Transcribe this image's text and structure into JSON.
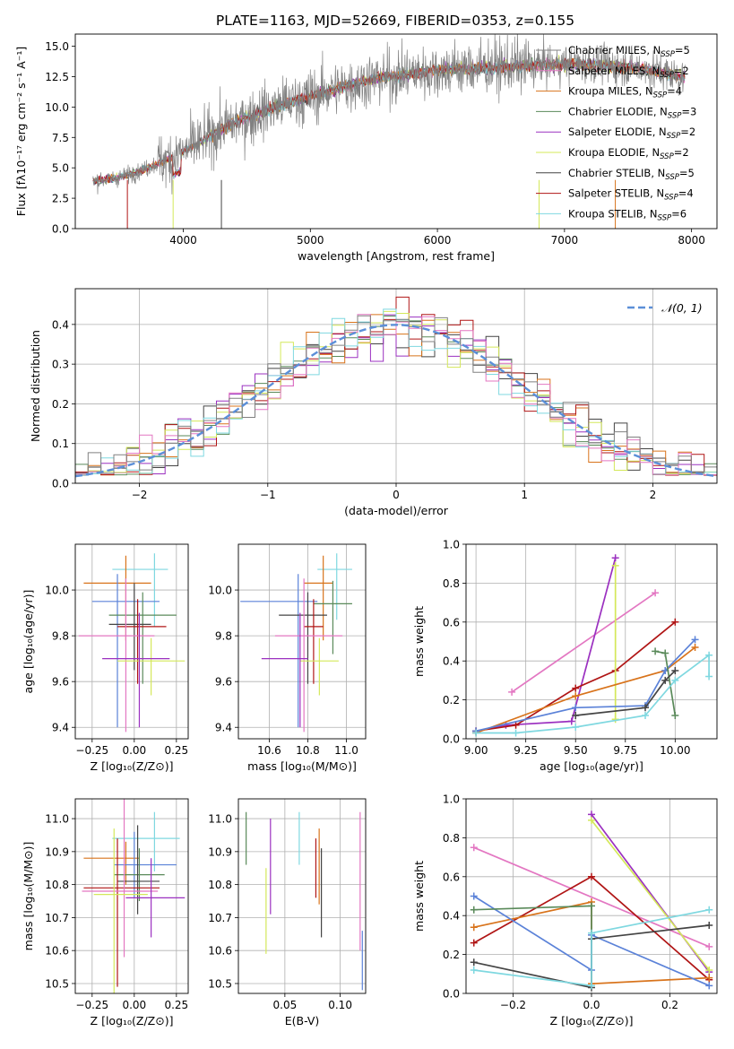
{
  "figure": {
    "title": "PLATE=1163, MJD=52669, FIBERID=0353, z=0.155"
  },
  "models": [
    {
      "label": "Chabrier MILES, N",
      "sub": "SSP",
      "tail": "=5",
      "color": "#808080"
    },
    {
      "label": "Salpeter MILES, N",
      "sub": "SSP",
      "tail": "=2",
      "color": "#e377c2"
    },
    {
      "label": "Kroupa MILES, N",
      "sub": "SSP",
      "tail": "=4",
      "color": "#d8731b"
    },
    {
      "label": "Chabrier ELODIE, N",
      "sub": "SSP",
      "tail": "=3",
      "color": "#5a8a5a"
    },
    {
      "label": "Salpeter ELODIE, N",
      "sub": "SSP",
      "tail": "=2",
      "color": "#9b30c0"
    },
    {
      "label": "Kroupa ELODIE, N",
      "sub": "SSP",
      "tail": "=2",
      "color": "#d4e85a"
    },
    {
      "label": "Chabrier STELIB, N",
      "sub": "SSP",
      "tail": "=5",
      "color": "#444444"
    },
    {
      "label": "Salpeter STELIB, N",
      "sub": "SSP",
      "tail": "=4",
      "color": "#b01515"
    },
    {
      "label": "Kroupa STELIB, N",
      "sub": "SSP",
      "tail": "=6",
      "color": "#7fd8e0"
    }
  ],
  "extra_colors": {
    "blue": "#5b82d8",
    "gauss": "#5b8fd8"
  },
  "chart_data": [
    {
      "id": "spectrum",
      "type": "line",
      "xlabel": "wavelength [Angstrom, rest frame]",
      "ylabel": "Flux [fλ10⁻¹⁷ erg cm⁻² s⁻¹ A⁻¹]",
      "xlim": [
        3150,
        8200
      ],
      "ylim": [
        0,
        16
      ],
      "xticks": [
        "4000",
        "5000",
        "6000",
        "7000",
        "8000"
      ],
      "yticks": [
        "0.0",
        "2.5",
        "5.0",
        "7.5",
        "10.0",
        "12.5",
        "15.0"
      ],
      "continuum": {
        "x": [
          3300,
          3500,
          3700,
          3900,
          4100,
          4300,
          4500,
          4700,
          4900,
          5100,
          5300,
          5500,
          5700,
          5900,
          6100,
          6300,
          6500,
          6700,
          6900,
          7100,
          7300,
          7500,
          7700,
          7900
        ],
        "y": [
          3.9,
          4.2,
          4.9,
          5.8,
          6.9,
          8.2,
          9.1,
          9.9,
          10.6,
          11.2,
          11.8,
          12.3,
          12.6,
          12.9,
          13.1,
          13.2,
          13.3,
          13.4,
          13.5,
          13.5,
          13.4,
          13.3,
          13.0,
          12.5
        ]
      }
    },
    {
      "id": "residuals",
      "type": "histogram",
      "xlabel": "(data-model)/error",
      "ylabel": "Normed distribution",
      "xlim": [
        -2.5,
        2.5
      ],
      "ylim": [
        0,
        0.49
      ],
      "xticks": [
        "−2",
        "−1",
        "0",
        "1",
        "2"
      ],
      "yticks": [
        "0.0",
        "0.1",
        "0.2",
        "0.3",
        "0.4"
      ],
      "legend": "𝒩(0, 1)",
      "bin_width": 0.1
    },
    {
      "id": "age_vs_z",
      "type": "scatter",
      "xlabel": "Z [log₁₀(Z/Z⊙)]",
      "ylabel": "age  [log₁₀(age/yr)]",
      "xlim": [
        -0.35,
        0.32
      ],
      "ylim": [
        9.35,
        10.2
      ],
      "xticks": [
        "−0.25",
        "0.00",
        "0.25"
      ],
      "yticks": [
        "9.4",
        "9.6",
        "9.8",
        "10.0"
      ],
      "points": [
        {
          "x": 0.12,
          "y": 10.09,
          "xerr": [
            0.25,
            0.08
          ],
          "yerr": [
            0.25,
            0.07
          ]
        },
        {
          "x": -0.05,
          "y": 10.03,
          "xerr": [
            0.25,
            0.15
          ],
          "yerr": [
            0.25,
            0.12
          ]
        },
        {
          "x": -0.1,
          "y": 9.95,
          "xerr": [
            0.15,
            0.25
          ],
          "yerr": [
            0.55,
            0.12
          ]
        },
        {
          "x": 0.05,
          "y": 9.89,
          "xerr": [
            0.2,
            0.2
          ],
          "yerr": [
            0.3,
            0.1
          ]
        },
        {
          "x": 0.0,
          "y": 9.85,
          "xerr": [
            0.15,
            0.1
          ],
          "yerr": [
            0.2,
            0.18
          ]
        },
        {
          "x": 0.02,
          "y": 9.84,
          "xerr": [
            0.12,
            0.17
          ],
          "yerr": [
            0.25,
            0.12
          ]
        },
        {
          "x": -0.05,
          "y": 9.8,
          "xerr": [
            0.28,
            0.17
          ],
          "yerr": [
            0.42,
            0.25
          ]
        },
        {
          "x": 0.1,
          "y": 9.69,
          "xerr": [
            0.2,
            0.2
          ],
          "yerr": [
            0.15,
            0.1
          ]
        },
        {
          "x": 0.03,
          "y": 9.7,
          "xerr": [
            0.22,
            0.18
          ],
          "yerr": [
            0.3,
            0.2
          ]
        }
      ]
    },
    {
      "id": "age_vs_mass",
      "type": "scatter",
      "xlabel": "mass [log₁₀(M/M⊙)]",
      "ylabel": "",
      "xlim": [
        10.44,
        11.1
      ],
      "ylim": [
        9.35,
        10.2
      ],
      "xticks": [
        "10.6",
        "10.8",
        "11.0"
      ],
      "yticks": [
        "9.4",
        "9.6",
        "9.8",
        "10.0"
      ],
      "points": [
        {
          "x": 10.95,
          "y": 10.09,
          "xerr": [
            0.1,
            0.08
          ],
          "yerr": [
            0.22,
            0.07
          ]
        },
        {
          "x": 10.88,
          "y": 10.03,
          "xerr": [
            0.1,
            0.05
          ],
          "yerr": [
            0.25,
            0.12
          ]
        },
        {
          "x": 10.75,
          "y": 9.95,
          "xerr": [
            0.3,
            0.1
          ],
          "yerr": [
            0.55,
            0.12
          ]
        },
        {
          "x": 10.93,
          "y": 9.94,
          "xerr": [
            0.1,
            0.1
          ],
          "yerr": [
            0.22,
            0.1
          ]
        },
        {
          "x": 10.8,
          "y": 9.89,
          "xerr": [
            0.15,
            0.1
          ],
          "yerr": [
            0.3,
            0.1
          ]
        },
        {
          "x": 10.83,
          "y": 9.84,
          "xerr": [
            0.05,
            0.05
          ],
          "yerr": [
            0.25,
            0.12
          ]
        },
        {
          "x": 10.78,
          "y": 9.8,
          "xerr": [
            0.15,
            0.2
          ],
          "yerr": [
            0.42,
            0.25
          ]
        },
        {
          "x": 10.86,
          "y": 9.69,
          "xerr": [
            0.1,
            0.1
          ],
          "yerr": [
            0.15,
            0.1
          ]
        },
        {
          "x": 10.76,
          "y": 9.7,
          "xerr": [
            0.2,
            0.04
          ],
          "yerr": [
            0.3,
            0.2
          ]
        }
      ]
    },
    {
      "id": "weight_vs_age",
      "type": "line",
      "xlabel": "age  [log₁₀(age/yr)]",
      "ylabel": "mass weight",
      "xlim": [
        8.95,
        10.21
      ],
      "ylim": [
        0,
        1
      ],
      "xticks": [
        "9.00",
        "9.25",
        "9.50",
        "9.75",
        "10.00"
      ],
      "yticks": [
        "0.0",
        "0.2",
        "0.4",
        "0.6",
        "0.8",
        "1.0"
      ],
      "series": [
        {
          "x": [
            9.18,
            9.9
          ],
          "y": [
            0.24,
            0.75
          ]
        },
        {
          "x": [
            9.0,
            9.15,
            9.48,
            9.7
          ],
          "y": [
            0.04,
            0.07,
            0.09,
            0.93
          ]
        },
        {
          "x": [
            9.0,
            9.2,
            9.5,
            9.7,
            10.0
          ],
          "y": [
            0.04,
            0.07,
            0.26,
            0.35,
            0.6
          ]
        },
        {
          "x": [
            9.7,
            9.7
          ],
          "y": [
            0.1,
            0.89
          ]
        },
        {
          "x": [
            9.0,
            9.5,
            9.95,
            10.1
          ],
          "y": [
            0.03,
            0.22,
            0.35,
            0.47
          ]
        },
        {
          "x": [
            9.0,
            9.5,
            9.85,
            9.95,
            10.1
          ],
          "y": [
            0.04,
            0.16,
            0.17,
            0.35,
            0.51
          ]
        },
        {
          "x": [
            9.9,
            9.95,
            10.0
          ],
          "y": [
            0.45,
            0.44,
            0.12
          ]
        },
        {
          "x": [
            9.5,
            9.85,
            9.95,
            10.0
          ],
          "y": [
            0.12,
            0.16,
            0.3,
            0.35
          ]
        },
        {
          "x": [
            9.0,
            9.2,
            9.5,
            9.85,
            10.0,
            10.17,
            10.17
          ],
          "y": [
            0.03,
            0.03,
            0.06,
            0.12,
            0.3,
            0.43,
            0.32
          ]
        }
      ]
    },
    {
      "id": "mass_vs_z",
      "type": "scatter",
      "xlabel": "Z [log₁₀(Z/Z⊙)]",
      "ylabel": "mass [log₁₀(M/M⊙)]",
      "xlim": [
        -0.35,
        0.32
      ],
      "ylim": [
        10.47,
        11.06
      ],
      "xticks": [
        "−0.25",
        "0.00",
        "0.25"
      ],
      "yticks": [
        "10.5",
        "10.6",
        "10.7",
        "10.8",
        "10.9",
        "11.0"
      ],
      "points": [
        {
          "x": 0.12,
          "y": 10.94,
          "xerr": [
            0.25,
            0.15
          ],
          "yerr": [
            0.1,
            0.08
          ]
        },
        {
          "x": -0.05,
          "y": 10.88,
          "xerr": [
            0.25,
            0.08
          ],
          "yerr": [
            0.08,
            0.05
          ]
        },
        {
          "x": 0.0,
          "y": 10.86,
          "xerr": [
            0.12,
            0.25
          ],
          "yerr": [
            0.1,
            0.1
          ]
        },
        {
          "x": 0.03,
          "y": 10.83,
          "xerr": [
            0.15,
            0.15
          ],
          "yerr": [
            0.08,
            0.08
          ]
        },
        {
          "x": 0.02,
          "y": 10.81,
          "xerr": [
            0.12,
            0.13
          ],
          "yerr": [
            0.1,
            0.17
          ]
        },
        {
          "x": -0.1,
          "y": 10.79,
          "xerr": [
            0.2,
            0.25
          ],
          "yerr": [
            0.3,
            0.15
          ]
        },
        {
          "x": -0.06,
          "y": 10.78,
          "xerr": [
            0.25,
            0.2
          ],
          "yerr": [
            0.2,
            0.3
          ]
        },
        {
          "x": -0.12,
          "y": 10.77,
          "xerr": [
            0.12,
            0.2
          ],
          "yerr": [
            0.3,
            0.2
          ]
        },
        {
          "x": 0.1,
          "y": 10.76,
          "xerr": [
            0.15,
            0.2
          ],
          "yerr": [
            0.12,
            0.12
          ]
        }
      ]
    },
    {
      "id": "mass_vs_ebv",
      "type": "scatter",
      "xlabel": "E(B-V)",
      "ylabel": "",
      "xlim": [
        0.008,
        0.123
      ],
      "ylim": [
        10.47,
        11.06
      ],
      "xticks": [
        "0.05",
        "0.10"
      ],
      "yticks": [
        "10.5",
        "10.6",
        "10.7",
        "10.8",
        "10.9",
        "11.0"
      ],
      "lines": [
        {
          "x": 0.015,
          "y1": 10.86,
          "y2": 11.02
        },
        {
          "x": 0.037,
          "y1": 10.71,
          "y2": 11.0
        },
        {
          "x": 0.033,
          "y1": 10.59,
          "y2": 10.85
        },
        {
          "x": 0.063,
          "y1": 10.86,
          "y2": 11.02
        },
        {
          "x": 0.078,
          "y1": 10.76,
          "y2": 10.94
        },
        {
          "x": 0.081,
          "y1": 10.74,
          "y2": 10.97
        },
        {
          "x": 0.083,
          "y1": 10.64,
          "y2": 10.91
        },
        {
          "x": 0.118,
          "y1": 10.6,
          "y2": 11.02
        },
        {
          "x": 0.12,
          "y1": 10.48,
          "y2": 10.66
        }
      ]
    },
    {
      "id": "weight_vs_z",
      "type": "line",
      "xlabel": "Z [log₁₀(Z/Z⊙)]",
      "ylabel": "mass weight",
      "xlim": [
        -0.32,
        0.32
      ],
      "ylim": [
        0,
        1
      ],
      "xticks": [
        "−0.2",
        "0.0",
        "0.2"
      ],
      "yticks": [
        "0.0",
        "0.2",
        "0.4",
        "0.6",
        "0.8",
        "1.0"
      ],
      "series": [
        {
          "x": [
            -0.3,
            0.3
          ],
          "y": [
            0.75,
            0.24
          ]
        },
        {
          "x": [
            0.0,
            0.3
          ],
          "y": [
            0.92,
            0.11
          ]
        },
        {
          "x": [
            -0.3,
            0.0,
            0.3
          ],
          "y": [
            0.26,
            0.6,
            0.07
          ]
        },
        {
          "x": [
            0.0,
            0.3
          ],
          "y": [
            0.89,
            0.12
          ]
        },
        {
          "x": [
            -0.3,
            0.0,
            0.0,
            0.3
          ],
          "y": [
            0.34,
            0.47,
            0.05,
            0.08
          ]
        },
        {
          "x": [
            -0.3,
            0.0,
            0.0,
            0.3
          ],
          "y": [
            0.5,
            0.12,
            0.3,
            0.04
          ]
        },
        {
          "x": [
            -0.3,
            0.0,
            0.0
          ],
          "y": [
            0.43,
            0.45,
            0.28
          ]
        },
        {
          "x": [
            -0.3,
            0.0,
            0.0,
            0.3
          ],
          "y": [
            0.16,
            0.03,
            0.28,
            0.35
          ]
        },
        {
          "x": [
            -0.3,
            0.0,
            0.0,
            0.3
          ],
          "y": [
            0.12,
            0.04,
            0.31,
            0.43
          ]
        }
      ]
    }
  ]
}
